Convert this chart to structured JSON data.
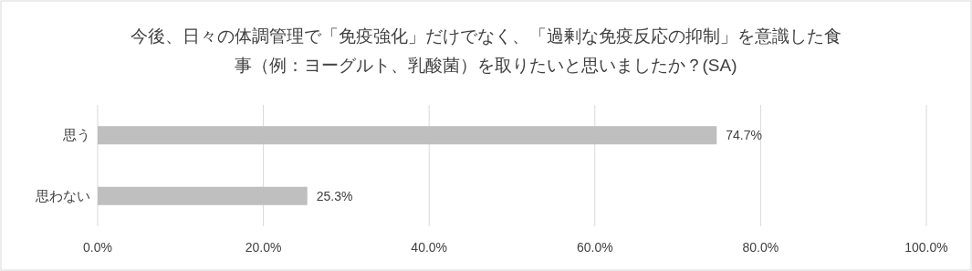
{
  "chart_data": {
    "type": "bar",
    "orientation": "horizontal",
    "title": "今後、日々の体調管理で「免疫強化」だけでなく、「過剰な免疫反応の抑制」を意識した食事（例：ヨーグルト、乳酸菌）を取りたいと思いましたか？(SA)",
    "categories": [
      "思う",
      "思わない"
    ],
    "values": [
      74.7,
      25.3
    ],
    "value_labels": [
      "74.7%",
      "25.3%"
    ],
    "color": "#bfbfbf",
    "xlim": [
      0,
      100
    ],
    "xticks": [
      {
        "value": 0,
        "label": "0.0%"
      },
      {
        "value": 20,
        "label": "20.0%"
      },
      {
        "value": 40,
        "label": "40.0%"
      },
      {
        "value": 60,
        "label": "60.0%"
      },
      {
        "value": 80,
        "label": "80.0%"
      },
      {
        "value": 100,
        "label": "100.0%"
      }
    ],
    "grid": "x"
  }
}
